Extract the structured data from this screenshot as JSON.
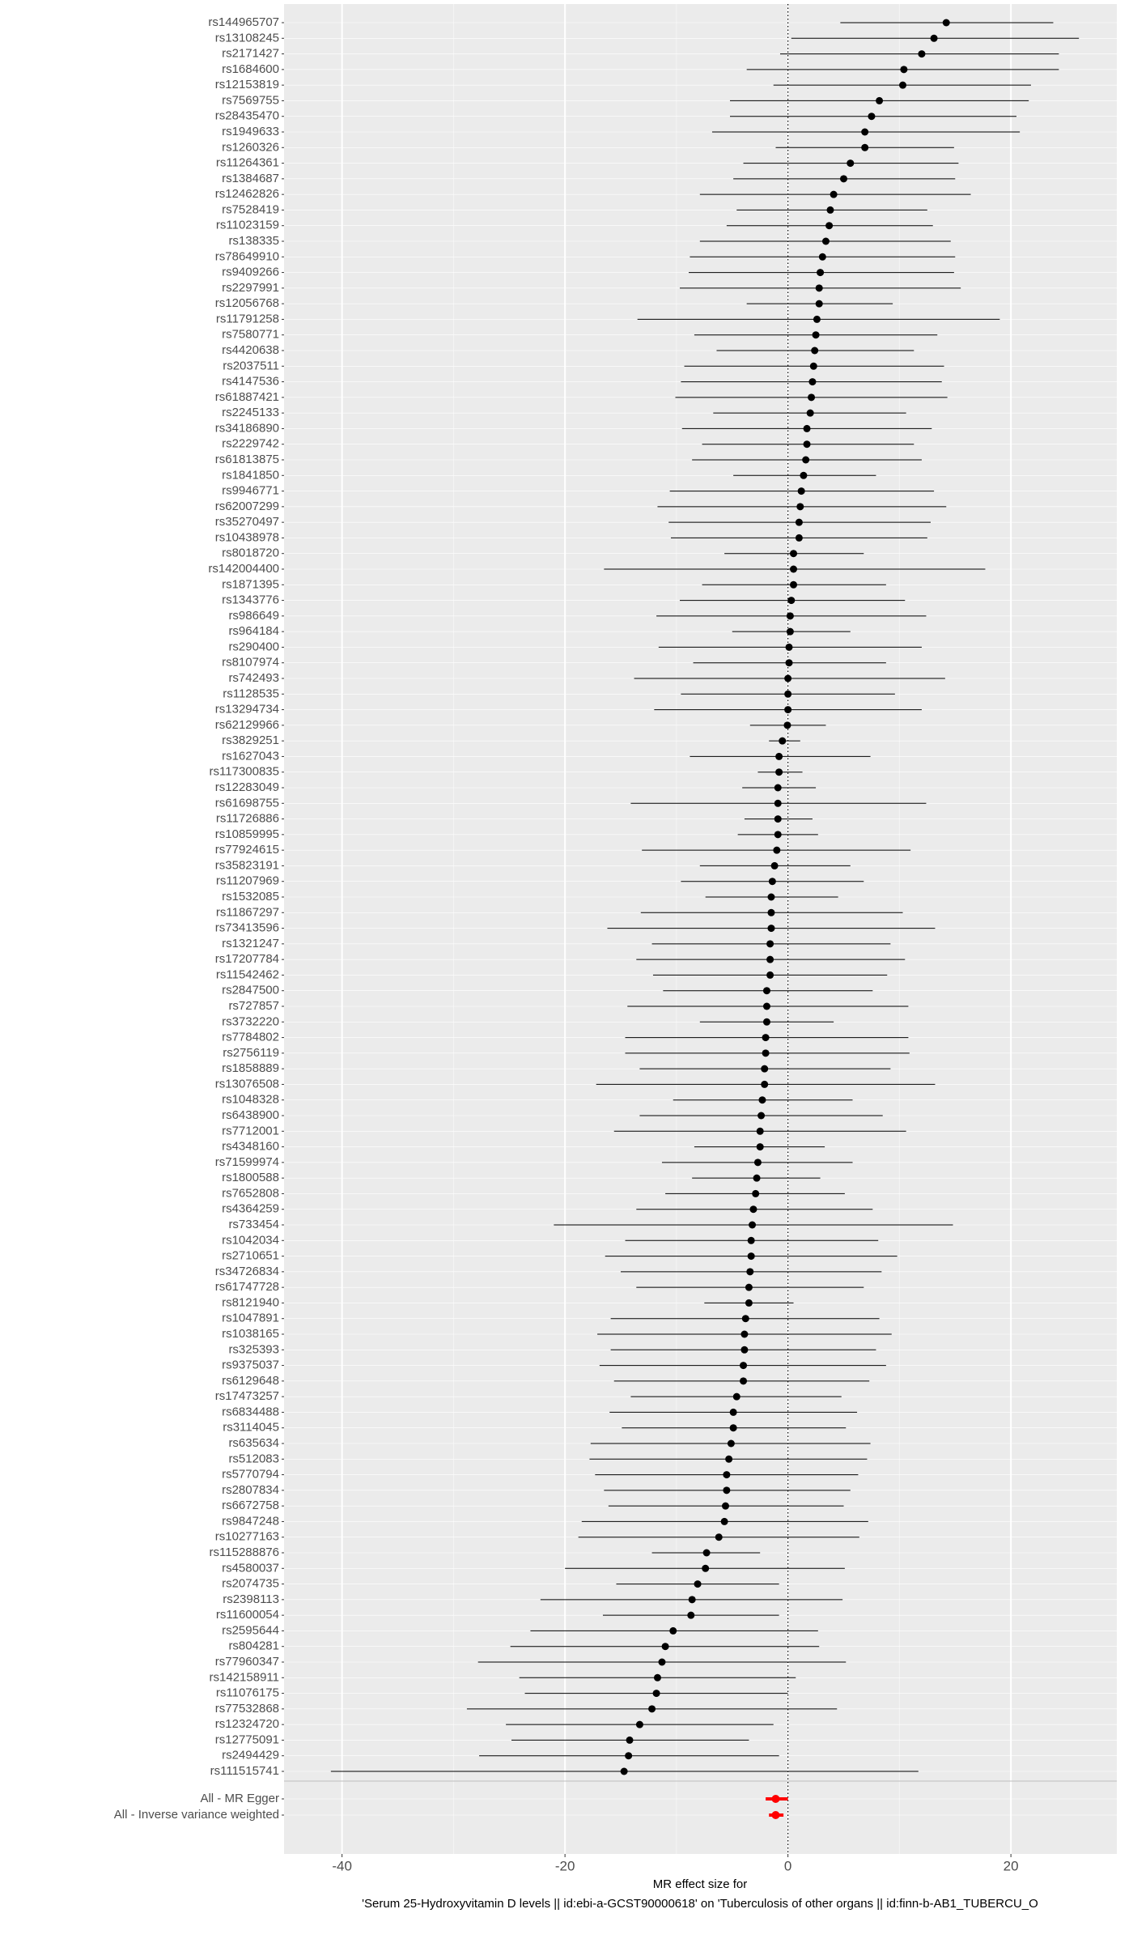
{
  "chart_data": {
    "type": "forest",
    "categories": [
      "rs144965707",
      "rs13108245",
      "rs2171427",
      "rs1684600",
      "rs12153819",
      "rs7569755",
      "rs28435470",
      "rs1949633",
      "rs1260326",
      "rs11264361",
      "rs1384687",
      "rs12462826",
      "rs7528419",
      "rs11023159",
      "rs138335",
      "rs78649910",
      "rs9409266",
      "rs2297991",
      "rs12056768",
      "rs11791258",
      "rs7580771",
      "rs4420638",
      "rs2037511",
      "rs4147536",
      "rs61887421",
      "rs2245133",
      "rs34186890",
      "rs2229742",
      "rs61813875",
      "rs1841850",
      "rs9946771",
      "rs62007299",
      "rs35270497",
      "rs10438978",
      "rs8018720",
      "rs142004400",
      "rs1871395",
      "rs1343776",
      "rs986649",
      "rs964184",
      "rs290400",
      "rs8107974",
      "rs742493",
      "rs1128535",
      "rs13294734",
      "rs62129966",
      "rs3829251",
      "rs1627043",
      "rs117300835",
      "rs12283049",
      "rs61698755",
      "rs11726886",
      "rs10859995",
      "rs77924615",
      "rs35823191",
      "rs11207969",
      "rs1532085",
      "rs11867297",
      "rs73413596",
      "rs1321247",
      "rs17207784",
      "rs11542462",
      "rs2847500",
      "rs727857",
      "rs3732220",
      "rs7784802",
      "rs2756119",
      "rs1858889",
      "rs13076508",
      "rs1048328",
      "rs6438900",
      "rs7712001",
      "rs4348160",
      "rs71599974",
      "rs1800588",
      "rs7652808",
      "rs4364259",
      "rs733454",
      "rs1042034",
      "rs2710651",
      "rs34726834",
      "rs61747728",
      "rs8121940",
      "rs1047891",
      "rs1038165",
      "rs325393",
      "rs9375037",
      "rs6129648",
      "rs17473257",
      "rs6834488",
      "rs3114045",
      "rs635634",
      "rs512083",
      "rs5770794",
      "rs2807834",
      "rs6672758",
      "rs9847248",
      "rs10277163",
      "rs115288876",
      "rs4580037",
      "rs2074735",
      "rs2398113",
      "rs11600054",
      "rs2595644",
      "rs804281",
      "rs77960347",
      "rs142158911",
      "rs11076175",
      "rs77532868",
      "rs12324720",
      "rs12775091",
      "rs2494429",
      "rs111515741"
    ],
    "values": [
      14.2,
      13.1,
      12.0,
      10.4,
      10.3,
      8.2,
      7.5,
      6.9,
      6.9,
      5.6,
      5.0,
      4.1,
      3.8,
      3.7,
      3.4,
      3.1,
      2.9,
      2.8,
      2.8,
      2.6,
      2.5,
      2.4,
      2.3,
      2.2,
      2.1,
      2.0,
      1.7,
      1.7,
      1.6,
      1.4,
      1.2,
      1.1,
      1.0,
      1.0,
      0.5,
      0.5,
      0.5,
      0.3,
      0.2,
      0.2,
      0.1,
      0.1,
      0.0,
      0.0,
      0.0,
      -0.05,
      -0.5,
      -0.8,
      -0.8,
      -0.9,
      -0.9,
      -0.9,
      -0.9,
      -1.0,
      -1.2,
      -1.4,
      -1.5,
      -1.5,
      -1.5,
      -1.6,
      -1.6,
      -1.6,
      -1.9,
      -1.9,
      -1.9,
      -2.0,
      -2.0,
      -2.1,
      -2.1,
      -2.3,
      -2.4,
      -2.5,
      -2.5,
      -2.7,
      -2.8,
      -2.9,
      -3.1,
      -3.2,
      -3.3,
      -3.3,
      -3.4,
      -3.5,
      -3.5,
      -3.8,
      -3.9,
      -3.9,
      -4.0,
      -4.0,
      -4.6,
      -4.9,
      -4.9,
      -5.1,
      -5.3,
      -5.5,
      -5.5,
      -5.6,
      -5.7,
      -6.2,
      -7.3,
      -7.4,
      -8.1,
      -8.6,
      -8.7,
      -10.3,
      -11.0,
      -11.3,
      -11.7,
      -11.8,
      -12.2,
      -13.3,
      -14.2,
      -14.3,
      -14.7
    ],
    "lower": [
      4.7,
      0.3,
      -0.7,
      -3.7,
      -1.3,
      -5.2,
      -5.2,
      -6.8,
      -1.1,
      -4.0,
      -4.9,
      -7.9,
      -4.6,
      -5.5,
      -7.9,
      -8.8,
      -8.9,
      -9.7,
      -3.7,
      -13.5,
      -8.4,
      -6.4,
      -9.3,
      -9.6,
      -10.1,
      -6.7,
      -9.5,
      -7.7,
      -8.6,
      -4.9,
      -10.6,
      -11.7,
      -10.7,
      -10.5,
      -5.7,
      -16.5,
      -7.7,
      -9.7,
      -11.8,
      -5.0,
      -11.6,
      -8.5,
      -13.8,
      -9.6,
      -12.0,
      -3.4,
      -1.7,
      -8.8,
      -2.7,
      -4.1,
      -14.1,
      -3.9,
      -4.5,
      -13.1,
      -7.9,
      -9.6,
      -7.4,
      -13.2,
      -16.2,
      -12.2,
      -13.6,
      -12.1,
      -11.2,
      -14.4,
      -7.9,
      -14.6,
      -14.6,
      -13.3,
      -17.2,
      -10.3,
      -13.3,
      -15.6,
      -8.4,
      -11.3,
      -8.6,
      -11.0,
      -13.6,
      -21.0,
      -14.6,
      -16.4,
      -15.0,
      -13.6,
      -7.5,
      -15.9,
      -17.1,
      -15.9,
      -16.9,
      -15.6,
      -14.1,
      -16.0,
      -14.9,
      -17.7,
      -17.8,
      -17.3,
      -16.5,
      -16.1,
      -18.5,
      -18.8,
      -12.2,
      -20.0,
      -15.4,
      -22.2,
      -16.6,
      -23.1,
      -24.9,
      -27.8,
      -24.1,
      -23.6,
      -28.8,
      -25.3,
      -24.8,
      -27.7,
      -41.0
    ],
    "upper": [
      23.8,
      26.1,
      24.3,
      24.3,
      21.8,
      21.6,
      20.5,
      20.8,
      14.9,
      15.3,
      15.0,
      16.4,
      12.5,
      13.0,
      14.6,
      15.0,
      14.9,
      15.5,
      9.4,
      19.0,
      13.4,
      11.3,
      14.0,
      13.8,
      14.3,
      10.6,
      12.9,
      11.3,
      12.0,
      7.9,
      13.1,
      14.2,
      12.8,
      12.5,
      6.8,
      17.7,
      8.8,
      10.5,
      12.4,
      5.6,
      12.0,
      8.8,
      14.1,
      9.6,
      12.0,
      3.4,
      1.1,
      7.4,
      1.3,
      2.5,
      12.4,
      2.2,
      2.7,
      11.0,
      5.6,
      6.8,
      4.5,
      10.3,
      13.2,
      9.2,
      10.5,
      8.9,
      7.6,
      10.8,
      4.1,
      10.8,
      10.9,
      9.2,
      13.2,
      5.8,
      8.5,
      10.6,
      3.3,
      5.8,
      2.9,
      5.1,
      7.6,
      14.8,
      8.1,
      9.8,
      8.4,
      6.8,
      0.5,
      8.2,
      9.3,
      7.9,
      8.8,
      7.3,
      4.8,
      6.2,
      5.2,
      7.4,
      7.1,
      6.3,
      5.6,
      5.0,
      7.2,
      6.4,
      -2.5,
      5.1,
      -0.8,
      4.9,
      -0.8,
      2.7,
      2.8,
      5.2,
      0.7,
      0.0,
      4.4,
      -1.3,
      -3.5,
      -0.8,
      11.7
    ],
    "color": "#000000",
    "summary": {
      "categories": [
        "All - MR Egger",
        "All - Inverse variance weighted"
      ],
      "values": [
        -1.1,
        -1.1
      ],
      "lower": [
        -2.0,
        -1.7
      ],
      "upper": [
        0.0,
        -0.4
      ],
      "color": "#ff0000"
    },
    "reference_line": 0,
    "xlim": [
      -45.2,
      29.5
    ],
    "xticks": [
      -40,
      -20,
      0,
      20
    ],
    "grid": true,
    "xlabel": [
      "MR effect size for",
      "'Serum 25-Hydroxyvitamin D levels || id:ebi-a-GCST90000618' on 'Tuberculosis of other organs || id:finn-b-AB1_TUBERCU_O"
    ]
  }
}
